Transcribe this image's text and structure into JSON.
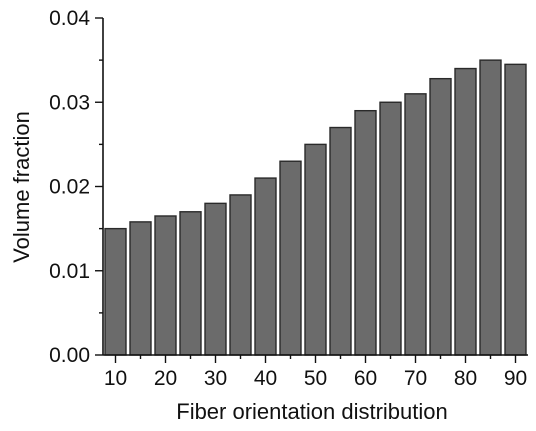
{
  "chart_data": {
    "type": "bar",
    "title": "",
    "xlabel": "Fiber orientation distribution",
    "ylabel": "Volume fraction",
    "categories": [
      10,
      15,
      20,
      25,
      30,
      35,
      40,
      45,
      50,
      55,
      60,
      65,
      70,
      75,
      80,
      85,
      90
    ],
    "values": [
      0.015,
      0.0158,
      0.0165,
      0.017,
      0.018,
      0.019,
      0.021,
      0.023,
      0.025,
      0.027,
      0.029,
      0.03,
      0.031,
      0.0328,
      0.034,
      0.035,
      0.0345
    ],
    "xlim": [
      7.5,
      92.5
    ],
    "ylim": [
      0,
      0.04
    ],
    "x_ticks": [
      "10",
      "20",
      "30",
      "40",
      "50",
      "60",
      "70",
      "80",
      "90"
    ],
    "y_ticks": [
      "0.00",
      "0.01",
      "0.02",
      "0.03",
      "0.04"
    ],
    "bar_color": "#6b6b6b",
    "grid": false,
    "legend": "none"
  }
}
